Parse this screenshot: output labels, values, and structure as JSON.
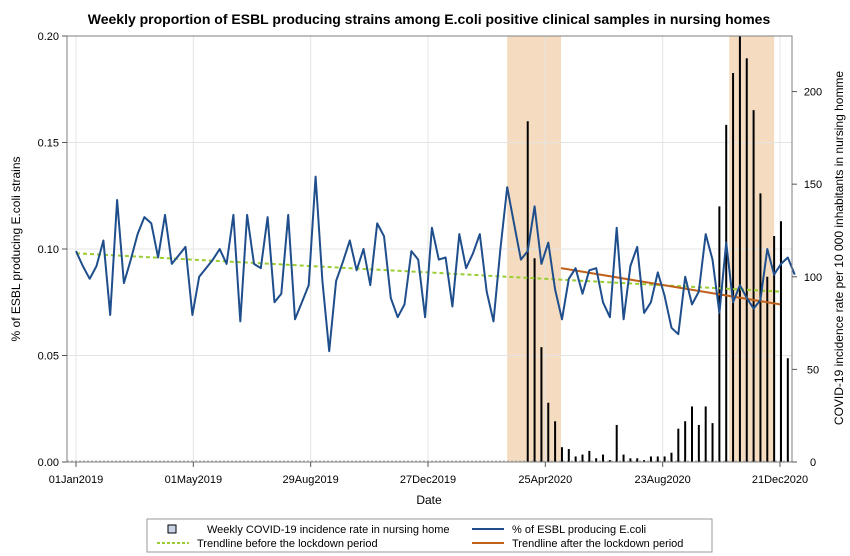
{
  "chart_data": {
    "type": "line",
    "title": "Weekly proportion of ESBL producing strains among E.coli positive clinical samples in nursing homes",
    "xlabel": "Date",
    "ylabel_left": "% of ESBL producing E.coli strains",
    "ylabel_right": "COVID-19 incidence rate per 10 000 inhabitants in nursing homme",
    "x_range": [
      "2019-01-01",
      "2020-12-21"
    ],
    "x_tick_labels": [
      "01Jan2019",
      "01May2019",
      "29Aug2019",
      "27Dec2019",
      "25Apr2020",
      "23Aug2020",
      "21Dec2020"
    ],
    "x_tick_dates": [
      "2019-01-01",
      "2019-05-01",
      "2019-08-29",
      "2019-12-27",
      "2020-04-25",
      "2020-08-23",
      "2020-12-21"
    ],
    "ylim_left": [
      0,
      0.2
    ],
    "y_ticks_left": [
      0,
      0.05,
      0.1,
      0.15,
      0.2
    ],
    "y_tick_labels_left": [
      "0.00",
      "0.05",
      "0.10",
      "0.15",
      "0.20"
    ],
    "ylim_right": [
      0,
      230
    ],
    "y_ticks_right": [
      0,
      50,
      100,
      150,
      200
    ],
    "y_tick_labels_right": [
      "0",
      "50",
      "100",
      "150",
      "200"
    ],
    "grid": true,
    "shaded_periods": [
      {
        "start": "2020-03-17",
        "end": "2020-05-11"
      },
      {
        "start": "2020-10-30",
        "end": "2020-12-15"
      }
    ],
    "shade_color": "#f5dcc0",
    "esbl_series": {
      "name": "% of ESBL producing E.coli",
      "color": "#1f4e8c",
      "start": "2019-01-01",
      "interval_days": 7,
      "values": [
        0.099,
        0.092,
        0.086,
        0.092,
        0.104,
        0.069,
        0.123,
        0.084,
        0.095,
        0.107,
        0.115,
        0.112,
        0.096,
        0.116,
        0.093,
        0.097,
        0.101,
        0.069,
        0.087,
        0.091,
        0.095,
        0.1,
        0.093,
        0.116,
        0.066,
        0.116,
        0.093,
        0.091,
        0.115,
        0.075,
        0.079,
        0.116,
        0.067,
        0.075,
        0.083,
        0.134,
        0.085,
        0.052,
        0.085,
        0.094,
        0.104,
        0.09,
        0.1,
        0.083,
        0.112,
        0.106,
        0.077,
        0.068,
        0.074,
        0.099,
        0.095,
        0.068,
        0.11,
        0.095,
        0.096,
        0.073,
        0.107,
        0.091,
        0.098,
        0.107,
        0.08,
        0.066,
        0.1,
        0.129,
        0.112,
        0.095,
        0.099,
        0.12,
        0.093,
        0.103,
        0.081,
        0.067,
        0.086,
        0.091,
        0.079,
        0.09,
        0.091,
        0.075,
        0.068,
        0.11,
        0.067,
        0.092,
        0.101,
        0.07,
        0.075,
        0.089,
        0.078,
        0.063,
        0.06,
        0.087,
        0.074,
        0.08,
        0.107,
        0.095,
        0.07,
        0.103,
        0.075,
        0.083,
        0.077,
        0.072,
        0.076,
        0.1,
        0.088,
        0.093,
        0.096,
        0.088
      ]
    },
    "covid_series": {
      "name": "Weekly COVID-19 incidence rate in nursing home",
      "color": "#000000",
      "start": "2020-03-17",
      "interval_days": 7,
      "values": [
        0,
        0,
        0,
        184,
        110,
        62,
        32,
        22,
        8,
        7,
        3,
        4,
        6,
        2,
        4,
        1,
        20,
        4,
        2,
        2,
        1,
        3,
        3,
        3,
        5,
        18,
        22,
        30,
        20,
        30,
        21,
        138,
        182,
        210,
        230,
        218,
        190,
        145,
        100,
        122,
        130,
        56
      ]
    },
    "trend_before": {
      "name": "Trendline before the lockdown period",
      "color": "#9acd32",
      "x": [
        "2019-01-01",
        "2020-12-21"
      ],
      "y": [
        0.098,
        0.08
      ]
    },
    "trend_after": {
      "name": "Trendline after the lockdown period",
      "color": "#c0601a",
      "x": [
        "2020-05-11",
        "2020-12-21"
      ],
      "y": [
        0.091,
        0.074
      ]
    }
  },
  "legend": {
    "items": [
      {
        "label": "Weekly COVID-19 incidence rate in nursing home",
        "kind": "box"
      },
      {
        "label": "% of ESBL producing E.coli",
        "kind": "line",
        "color": "#1f4e8c"
      },
      {
        "label": "Trendline before the lockdown period",
        "kind": "dash",
        "color": "#9acd32"
      },
      {
        "label": "Trendline after the lockdown period",
        "kind": "line",
        "color": "#c0601a"
      }
    ]
  }
}
